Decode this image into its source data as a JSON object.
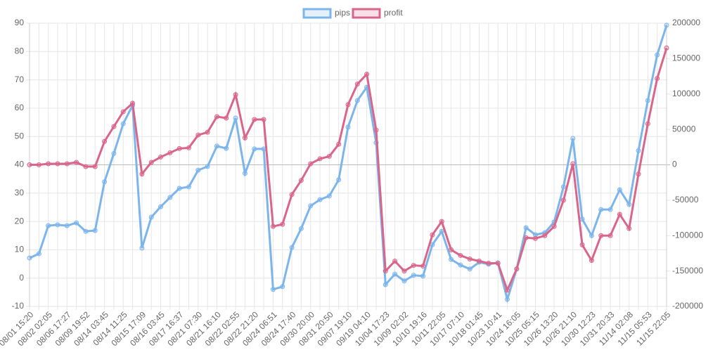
{
  "chart_data": {
    "type": "line",
    "categories": [
      "08/01 15:20",
      null,
      "08/02 02:05",
      null,
      "08/06 17:27",
      null,
      "08/09 19:52",
      null,
      "08/14 03:45",
      null,
      "08/14 11:25",
      null,
      "08/15 17:09",
      null,
      "08/16 03:45",
      null,
      "08/17 16:37",
      null,
      "08/21 07:30",
      null,
      "08/21 16:10",
      null,
      "08/22 02:55",
      null,
      "08/22 21:20",
      null,
      "08/24 06:51",
      null,
      "08/24 17:40",
      null,
      "08/30 20:00",
      null,
      "08/31 20:50",
      null,
      "09/07 19:10",
      null,
      "09/19 04:10",
      null,
      "10/04 17:23",
      null,
      "10/09 02:02",
      null,
      "10/10 19:16",
      null,
      "10/11 22:05",
      null,
      "10/17 07:10",
      null,
      "10/18 01:45",
      null,
      "10/23 10:41",
      null,
      "10/24 16:05",
      null,
      "10/25 05:15",
      null,
      "10/26 13:20",
      null,
      "10/26 21:10",
      null,
      "10/30 12:23",
      null,
      "10/31 20:33",
      null,
      "11/14 02:08",
      null,
      "11/15 05:53",
      null,
      "11/15 22:05"
    ],
    "series": [
      {
        "name": "pips",
        "color": "#7cb5ec",
        "axis": "y",
        "values": [
          7.1,
          8.6,
          18.5,
          18.8,
          18.5,
          19.5,
          16.5,
          16.8,
          34,
          44,
          54.5,
          61,
          10.6,
          21.5,
          25.2,
          28.5,
          31.7,
          32.2,
          38.1,
          39.4,
          46.6,
          45.8,
          56.5,
          37,
          45.6,
          45.6,
          -4,
          -3,
          10.8,
          17.5,
          25.5,
          27.7,
          29,
          34.7,
          53.3,
          62.7,
          67.4,
          47.8,
          -2.3,
          1.4,
          -1,
          1,
          0.7,
          11.8,
          16.5,
          6.6,
          4.6,
          3.2,
          5.6,
          4.9,
          5.4,
          -7.5,
          3.2,
          17.8,
          15.3,
          16,
          19.8,
          32.2,
          49.3,
          20.8,
          15,
          24.2,
          24.2,
          31.2,
          26,
          45,
          62.7,
          78.8,
          89.3
        ]
      },
      {
        "name": "profit",
        "color": "#d9668a",
        "axis": "y2",
        "values": [
          0,
          0,
          1500,
          1500,
          1500,
          3500,
          -2500,
          -2500,
          33000,
          54000,
          75000,
          87000,
          -13000,
          3500,
          11000,
          17000,
          23000,
          24000,
          42000,
          46000,
          68000,
          66000,
          99000,
          38000,
          64000,
          64000,
          -87000,
          -84000,
          -42000,
          -22000,
          1500,
          8500,
          12000,
          29000,
          85000,
          114000,
          128000,
          49000,
          -150000,
          -136000,
          -150000,
          -142000,
          -143000,
          -99000,
          -80000,
          -120000,
          -128000,
          -133000,
          -136000,
          -139000,
          -139000,
          -177000,
          -147000,
          -103000,
          -104000,
          -100000,
          -87000,
          -50000,
          1500,
          -113000,
          -135000,
          -100000,
          -100000,
          -70000,
          -90000,
          -13000,
          58000,
          122000,
          165000
        ]
      }
    ],
    "ylim": [
      -10,
      90
    ],
    "yticks": [
      -10,
      0,
      10,
      20,
      30,
      40,
      50,
      60,
      70,
      80,
      90
    ],
    "y2lim": [
      -200000,
      200000
    ],
    "y2ticks": [
      -200000,
      -150000,
      -100000,
      -50000,
      0,
      50000,
      100000,
      150000,
      200000
    ],
    "grid": true,
    "legend": "top"
  }
}
